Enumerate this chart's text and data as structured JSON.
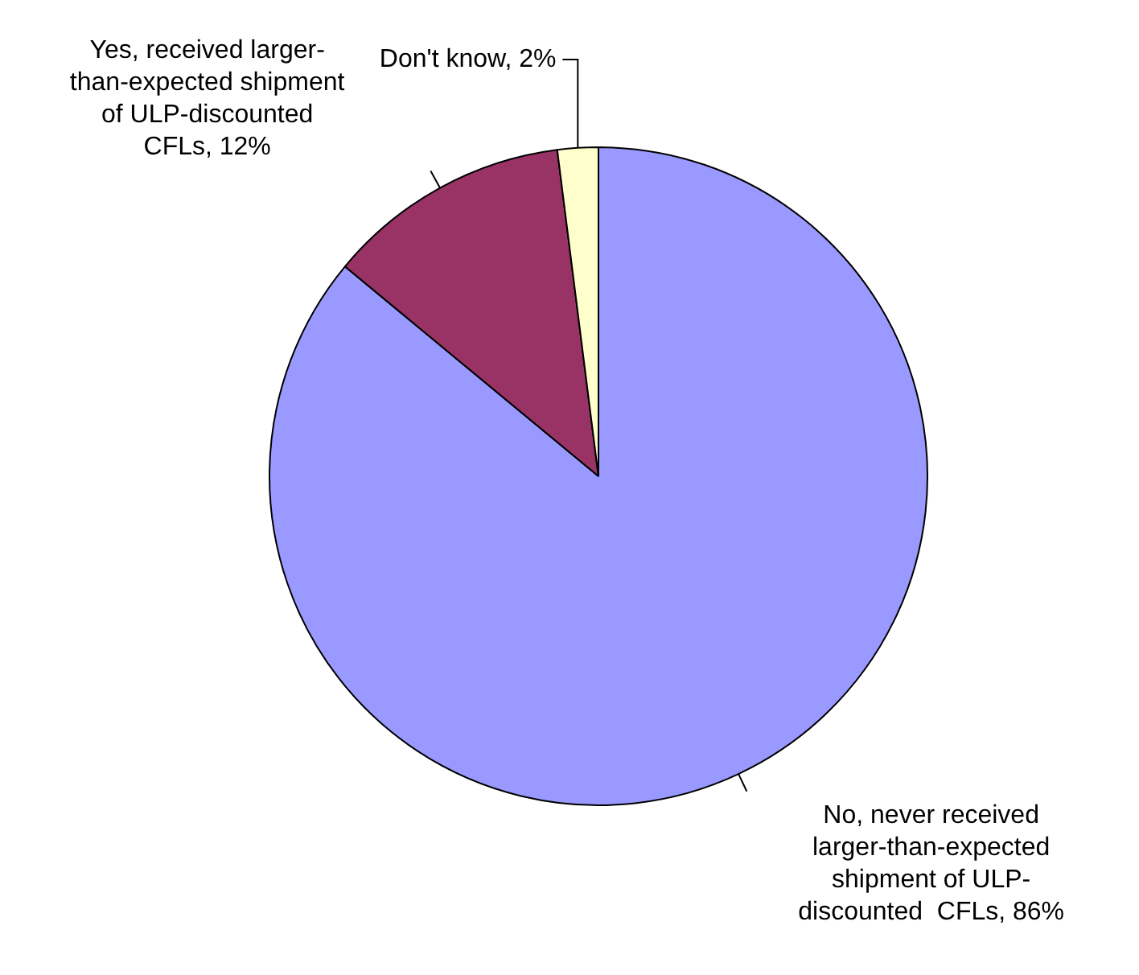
{
  "chart_data": {
    "type": "pie",
    "categories": [
      "No, never received larger-than-expected shipment of ULP-discounted  CFLs, 86%",
      "Yes, received larger-than-expected shipment of ULP-discounted  CFLs, 12%",
      "Don't know, 2%"
    ],
    "values": [
      86,
      12,
      2
    ],
    "colors": [
      "#9999ff",
      "#993366",
      "#ffffcc"
    ],
    "legend": false
  }
}
